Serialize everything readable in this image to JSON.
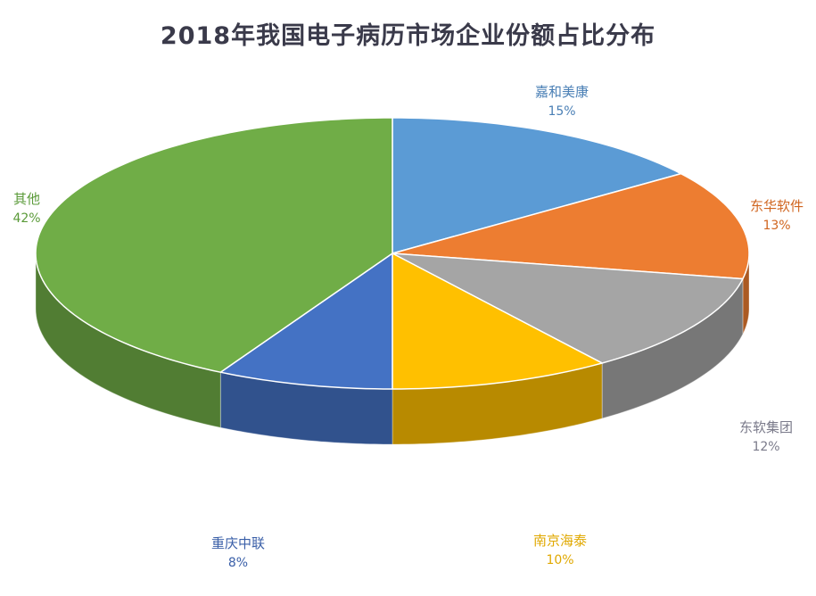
{
  "chart_data": {
    "type": "pie",
    "title": "2018年我国电子病历市场企业份额占比分布",
    "slices": [
      {
        "name": "嘉和美康",
        "value": 15,
        "value_label": "15%",
        "color": "#5B9BD5",
        "label_color": "#4a7fb5"
      },
      {
        "name": "东华软件",
        "value": 13,
        "value_label": "13%",
        "color": "#ED7D31",
        "label_color": "#d0651f"
      },
      {
        "name": "东软集团",
        "value": 12,
        "value_label": "12%",
        "color": "#A5A5A5",
        "label_color": "#7a7a8a"
      },
      {
        "name": "南京海泰",
        "value": 10,
        "value_label": "10%",
        "color": "#FFC000",
        "label_color": "#e0a800"
      },
      {
        "name": "重庆中联",
        "value": 8,
        "value_label": "8%",
        "color": "#4472C4",
        "label_color": "#3a5fa8"
      },
      {
        "name": "其他",
        "value": 42,
        "value_label": "42%",
        "color": "#70AD47",
        "label_color": "#5a9a38"
      }
    ],
    "style": "3d-pie",
    "legend": "none"
  }
}
